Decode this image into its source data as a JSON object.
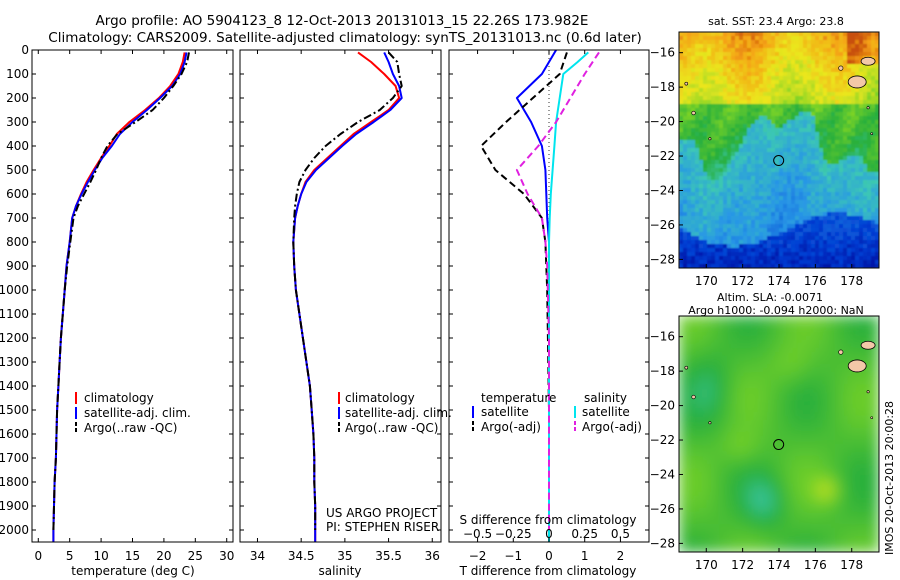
{
  "title_line1": "Argo profile: AO 5904123_8 12-Oct-2013 20131013_15 22.26S 173.982E",
  "title_line2": "Climatology: CARS2009. Satellite-adjusted climatology: synTS_20131013.nc (0.6d later)",
  "colors": {
    "climatology": "#ff0000",
    "satellite": "#0000ff",
    "argo": "#000000",
    "satellite_salinity": "#00e5ee",
    "argo_salinity": "#e020e0"
  },
  "chart_data": [
    {
      "type": "line",
      "name": "temperature-profile",
      "xlabel": "temperature (deg C)",
      "ylabel": "",
      "xlim": [
        -1,
        31
      ],
      "ylim": [
        2050,
        0
      ],
      "xticks": [
        0,
        5,
        10,
        15,
        20,
        25,
        30
      ],
      "yticks": [
        0,
        100,
        200,
        300,
        400,
        500,
        600,
        700,
        800,
        900,
        1000,
        1100,
        1200,
        1300,
        1400,
        1500,
        1600,
        1700,
        1800,
        1900,
        2000
      ],
      "y_inverted": true,
      "legend": {
        "placement": "lower-middle",
        "entries": [
          "climatology",
          "satellite-adj. clim.",
          "Argo(..raw -QC)"
        ]
      },
      "series": [
        {
          "name": "climatology",
          "style": "solid",
          "points": [
            [
              23.3,
              10
            ],
            [
              23.0,
              50
            ],
            [
              22.3,
              100
            ],
            [
              21.0,
              150
            ],
            [
              19.2,
              200
            ],
            [
              17.0,
              250
            ],
            [
              14.5,
              300
            ],
            [
              12.5,
              350
            ],
            [
              11.3,
              400
            ],
            [
              10.0,
              450
            ],
            [
              8.8,
              500
            ],
            [
              7.7,
              550
            ],
            [
              6.8,
              600
            ],
            [
              6.0,
              650
            ],
            [
              5.4,
              700
            ],
            [
              5.0,
              800
            ],
            [
              4.5,
              900
            ],
            [
              4.2,
              1000
            ],
            [
              3.9,
              1100
            ],
            [
              3.6,
              1200
            ],
            [
              3.4,
              1300
            ],
            [
              3.2,
              1400
            ],
            [
              3.0,
              1500
            ],
            [
              2.9,
              1600
            ],
            [
              2.8,
              1700
            ],
            [
              2.6,
              1800
            ],
            [
              2.5,
              1900
            ],
            [
              2.4,
              2000
            ],
            [
              2.4,
              2050
            ]
          ]
        },
        {
          "name": "satellite-adj. clim.",
          "style": "solid",
          "points": [
            [
              23.6,
              10
            ],
            [
              23.3,
              50
            ],
            [
              22.6,
              100
            ],
            [
              21.3,
              150
            ],
            [
              19.4,
              200
            ],
            [
              17.3,
              250
            ],
            [
              15.0,
              300
            ],
            [
              13.0,
              350
            ],
            [
              11.7,
              400
            ],
            [
              10.2,
              450
            ],
            [
              9.0,
              500
            ],
            [
              7.9,
              550
            ],
            [
              6.9,
              600
            ],
            [
              6.0,
              650
            ],
            [
              5.4,
              700
            ],
            [
              5.0,
              800
            ],
            [
              4.5,
              900
            ],
            [
              4.2,
              1000
            ],
            [
              3.9,
              1100
            ],
            [
              3.6,
              1200
            ],
            [
              3.4,
              1300
            ],
            [
              3.2,
              1400
            ],
            [
              3.0,
              1500
            ],
            [
              2.9,
              1600
            ],
            [
              2.8,
              1700
            ],
            [
              2.6,
              1800
            ],
            [
              2.5,
              1900
            ],
            [
              2.4,
              2000
            ],
            [
              2.4,
              2050
            ]
          ]
        },
        {
          "name": "Argo(..raw -QC)",
          "style": "dashdot",
          "points": [
            [
              24.0,
              10
            ],
            [
              23.7,
              50
            ],
            [
              22.8,
              100
            ],
            [
              21.5,
              150
            ],
            [
              20.0,
              200
            ],
            [
              18.2,
              250
            ],
            [
              15.5,
              300
            ],
            [
              12.6,
              350
            ],
            [
              11.0,
              400
            ],
            [
              10.0,
              450
            ],
            [
              9.2,
              500
            ],
            [
              8.3,
              550
            ],
            [
              7.3,
              600
            ],
            [
              6.3,
              650
            ],
            [
              5.6,
              700
            ],
            [
              5.1,
              800
            ],
            [
              4.6,
              900
            ],
            [
              4.2,
              1000
            ],
            [
              3.9,
              1100
            ],
            [
              3.6,
              1200
            ],
            [
              3.4,
              1300
            ],
            [
              3.2,
              1400
            ],
            [
              3.0,
              1500
            ],
            [
              2.9,
              1600
            ],
            [
              2.8,
              1700
            ],
            [
              2.6,
              1800
            ],
            [
              2.5,
              1900
            ],
            [
              2.4,
              2000
            ]
          ]
        }
      ]
    },
    {
      "type": "line",
      "name": "salinity-profile",
      "xlabel": "salinity",
      "ylabel": "",
      "xlim": [
        33.8,
        36.1
      ],
      "ylim": [
        2050,
        0
      ],
      "xticks": [
        34,
        34.5,
        35,
        35.5,
        36
      ],
      "y_inverted": true,
      "legend": {
        "placement": "lower-middle",
        "entries": [
          "climatology",
          "satellite-adj. clim.",
          "Argo(..raw -QC)"
        ]
      },
      "annotation": [
        "US ARGO PROJECT",
        "PI: STEPHEN RISER"
      ],
      "series": [
        {
          "name": "climatology",
          "style": "solid",
          "points": [
            [
              35.15,
              10
            ],
            [
              35.3,
              50
            ],
            [
              35.45,
              100
            ],
            [
              35.58,
              150
            ],
            [
              35.62,
              200
            ],
            [
              35.5,
              250
            ],
            [
              35.3,
              300
            ],
            [
              35.1,
              350
            ],
            [
              34.95,
              400
            ],
            [
              34.8,
              450
            ],
            [
              34.65,
              500
            ],
            [
              34.55,
              550
            ],
            [
              34.5,
              600
            ],
            [
              34.46,
              650
            ],
            [
              34.43,
              700
            ],
            [
              34.41,
              800
            ],
            [
              34.42,
              900
            ],
            [
              34.44,
              1000
            ],
            [
              34.48,
              1100
            ],
            [
              34.52,
              1200
            ],
            [
              34.56,
              1300
            ],
            [
              34.6,
              1400
            ],
            [
              34.62,
              1500
            ],
            [
              34.64,
              1600
            ],
            [
              34.65,
              1700
            ],
            [
              34.65,
              1800
            ],
            [
              34.66,
              1900
            ],
            [
              34.66,
              2000
            ],
            [
              34.66,
              2050
            ]
          ]
        },
        {
          "name": "satellite-adj. clim.",
          "style": "solid",
          "points": [
            [
              35.45,
              10
            ],
            [
              35.5,
              50
            ],
            [
              35.55,
              100
            ],
            [
              35.62,
              150
            ],
            [
              35.65,
              200
            ],
            [
              35.52,
              250
            ],
            [
              35.33,
              300
            ],
            [
              35.13,
              350
            ],
            [
              34.97,
              400
            ],
            [
              34.82,
              450
            ],
            [
              34.67,
              500
            ],
            [
              34.56,
              550
            ],
            [
              34.5,
              600
            ],
            [
              34.46,
              650
            ],
            [
              34.43,
              700
            ],
            [
              34.41,
              800
            ],
            [
              34.42,
              900
            ],
            [
              34.44,
              1000
            ],
            [
              34.48,
              1100
            ],
            [
              34.52,
              1200
            ],
            [
              34.56,
              1300
            ],
            [
              34.6,
              1400
            ],
            [
              34.62,
              1500
            ],
            [
              34.64,
              1600
            ],
            [
              34.65,
              1700
            ],
            [
              34.65,
              1800
            ],
            [
              34.66,
              1900
            ],
            [
              34.66,
              2000
            ],
            [
              34.66,
              2050
            ]
          ]
        },
        {
          "name": "Argo(..raw -QC)",
          "style": "dashdot",
          "points": [
            [
              35.5,
              10
            ],
            [
              35.6,
              50
            ],
            [
              35.62,
              100
            ],
            [
              35.65,
              150
            ],
            [
              35.55,
              200
            ],
            [
              35.4,
              250
            ],
            [
              35.15,
              300
            ],
            [
              34.95,
              350
            ],
            [
              34.78,
              400
            ],
            [
              34.65,
              450
            ],
            [
              34.55,
              500
            ],
            [
              34.48,
              550
            ],
            [
              34.45,
              600
            ],
            [
              34.43,
              650
            ],
            [
              34.42,
              700
            ],
            [
              34.41,
              800
            ],
            [
              34.42,
              900
            ],
            [
              34.44,
              1000
            ],
            [
              34.48,
              1100
            ],
            [
              34.52,
              1200
            ],
            [
              34.56,
              1300
            ],
            [
              34.6,
              1400
            ],
            [
              34.62,
              1500
            ],
            [
              34.64,
              1600
            ],
            [
              34.65,
              1700
            ],
            [
              34.65,
              1800
            ],
            [
              34.66,
              1900
            ],
            [
              34.66,
              2000
            ]
          ]
        }
      ]
    },
    {
      "type": "line",
      "name": "difference-profile",
      "xlabel": "T difference from climatology",
      "top_xlabel": "S difference from climatology",
      "ylabel": "",
      "xlim": [
        -2.8,
        2.8
      ],
      "ylim": [
        2050,
        0
      ],
      "xticks": [
        -2,
        -1,
        0,
        1,
        2
      ],
      "top_xticks": [
        {
          "v": -2.0,
          "label": "-0.5"
        },
        {
          "v": -1.0,
          "label": "-0.25"
        },
        {
          "v": 0.0,
          "label": "0"
        },
        {
          "v": 1.0,
          "label": "0.25"
        },
        {
          "v": 2.0,
          "label": "0.5"
        }
      ],
      "y_inverted": true,
      "legend": {
        "placement": "lower-middle",
        "temperature_header": "temperature",
        "salinity_header": "salinity",
        "entries": [
          "satellite",
          "Argo(-adj)",
          "satellite",
          "Argo(-adj)"
        ]
      },
      "series": [
        {
          "name": "temperature satellite",
          "style": "solid",
          "points": [
            [
              0.2,
              0
            ],
            [
              -0.2,
              100
            ],
            [
              -0.9,
              200
            ],
            [
              -0.5,
              300
            ],
            [
              -0.2,
              400
            ],
            [
              -0.1,
              500
            ],
            [
              -0.05,
              700
            ],
            [
              0,
              800
            ],
            [
              0,
              2050
            ]
          ]
        },
        {
          "name": "temperature Argo(-adj)",
          "style": "dashed",
          "points": [
            [
              0.5,
              10
            ],
            [
              0.3,
              100
            ],
            [
              -1.2,
              300
            ],
            [
              -1.9,
              400
            ],
            [
              -1.5,
              500
            ],
            [
              -0.7,
              600
            ],
            [
              -0.2,
              700
            ],
            [
              -0.1,
              800
            ],
            [
              -0.05,
              1000
            ],
            [
              0,
              1500
            ],
            [
              0,
              2000
            ]
          ]
        },
        {
          "name": "salinity satellite",
          "style": "solid",
          "points": [
            [
              1.1,
              10
            ],
            [
              0.8,
              50
            ],
            [
              0.4,
              100
            ],
            [
              0.3,
              200
            ],
            [
              0.2,
              300
            ],
            [
              0.15,
              400
            ],
            [
              0.1,
              500
            ],
            [
              0.05,
              600
            ],
            [
              0.02,
              700
            ],
            [
              0.0,
              800
            ],
            [
              0,
              2050
            ]
          ]
        },
        {
          "name": "salinity Argo(-adj)",
          "style": "dashed",
          "points": [
            [
              1.4,
              10
            ],
            [
              1.0,
              100
            ],
            [
              0.6,
              200
            ],
            [
              0.2,
              300
            ],
            [
              -0.3,
              400
            ],
            [
              -0.9,
              500
            ],
            [
              -0.6,
              600
            ],
            [
              -0.2,
              700
            ],
            [
              -0.1,
              800
            ],
            [
              -0.05,
              900
            ],
            [
              0,
              1200
            ],
            [
              0,
              2000
            ]
          ]
        }
      ]
    },
    {
      "type": "heatmap",
      "name": "sst-map",
      "title": "sat. SST: 23.4 Argo: 23.8",
      "xlim": [
        168.5,
        179.5
      ],
      "ylim": [
        -28.5,
        -14.8
      ],
      "xticks": [
        170,
        172,
        174,
        176,
        178
      ],
      "yticks": [
        -16,
        -18,
        -20,
        -22,
        -24,
        -26,
        -28
      ],
      "marker": [
        173.982,
        -22.26
      ]
    },
    {
      "type": "heatmap",
      "name": "sla-map",
      "title_line1": "Altim. SLA: -0.0071",
      "title_line2": "Argo h1000: -0.094 h2000: NaN",
      "xlim": [
        168.5,
        179.5
      ],
      "ylim": [
        -28.5,
        -14.8
      ],
      "xticks": [
        170,
        172,
        174,
        176,
        178
      ],
      "yticks": [
        -16,
        -18,
        -20,
        -22,
        -24,
        -26,
        -28
      ],
      "marker": [
        173.982,
        -22.26
      ]
    }
  ],
  "credit": "IMOS 20-Oct-2013 20:00:28"
}
